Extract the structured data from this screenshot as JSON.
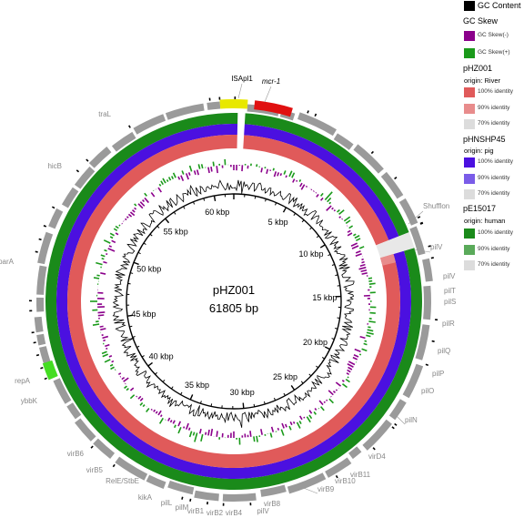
{
  "plasmid": {
    "name": "pHZ001",
    "size": "61805 bp"
  },
  "ticks": [
    "5 kbp",
    "10 kbp",
    "15 kbp",
    "20 kbp",
    "25 kbp",
    "30 kbp",
    "35 kbp",
    "40 kbp",
    "45 kbp",
    "50 kbp",
    "55 kbp",
    "60 kbp"
  ],
  "legend": {
    "gc_content": "GC Content",
    "gc_skew": "GC Skew",
    "skew_neg": "GC Skew(-)",
    "skew_pos": "GC Skew(+)",
    "sources": [
      {
        "name": "pHZ001",
        "origin": "origin:  River",
        "levels": [
          "100% identity",
          "90% identity",
          "70% identity"
        ],
        "colors": [
          "#e05a5a",
          "#e88c8c",
          "#dcdcdc"
        ]
      },
      {
        "name": "pHNSHP45",
        "origin": "origin:  pig",
        "levels": [
          "100% identity",
          "90% identity",
          "70% identity"
        ],
        "colors": [
          "#4b10e0",
          "#7a5ce8",
          "#dcdcdc"
        ]
      },
      {
        "name": "pE15017",
        "origin": "origin:  human",
        "levels": [
          "100% identity",
          "90% identity",
          "70% identity"
        ],
        "colors": [
          "#1a8a1a",
          "#5aaa5a",
          "#dcdcdc"
        ]
      }
    ]
  },
  "colors": {
    "gc_content": "#000000",
    "skew_neg": "#8b008b",
    "skew_pos": "#1a9a1a",
    "ring_red": "#e05a5a",
    "ring_blue": "#4b10e0",
    "ring_green": "#1a8a1a",
    "gene_gray": "#9a9a9a",
    "gene_red": "#e01010",
    "gene_yellow": "#e8e800",
    "gene_lime": "#44dd22",
    "label_gray": "#888888"
  },
  "genes": [
    {
      "label": "mcr-1",
      "color": "#e01010",
      "italic": true
    },
    {
      "label": "ISApl1",
      "color": "#e8e800"
    },
    {
      "label": "traL"
    },
    {
      "label": "hicB"
    },
    {
      "label": "parA"
    },
    {
      "label": "repA",
      "color": "#44dd22"
    },
    {
      "label": "ybbK"
    },
    {
      "label": "virB6"
    },
    {
      "label": "virB5"
    },
    {
      "label": "RelE/StbE"
    },
    {
      "label": "kikA"
    },
    {
      "label": "pilL"
    },
    {
      "label": "pilM"
    },
    {
      "label": "virB1"
    },
    {
      "label": "virB2"
    },
    {
      "label": "virB4"
    },
    {
      "label": "pilV"
    },
    {
      "label": "virB8"
    },
    {
      "label": "virB9"
    },
    {
      "label": "virB10"
    },
    {
      "label": "virB11"
    },
    {
      "label": "virD4"
    },
    {
      "label": "pilN"
    },
    {
      "label": "pilO"
    },
    {
      "label": "pilP"
    },
    {
      "label": "pilQ"
    },
    {
      "label": "pilR"
    },
    {
      "label": "pilS"
    },
    {
      "label": "pilT"
    },
    {
      "label": "pilV"
    },
    {
      "label": "pilV"
    },
    {
      "label": "Shufflon"
    }
  ]
}
